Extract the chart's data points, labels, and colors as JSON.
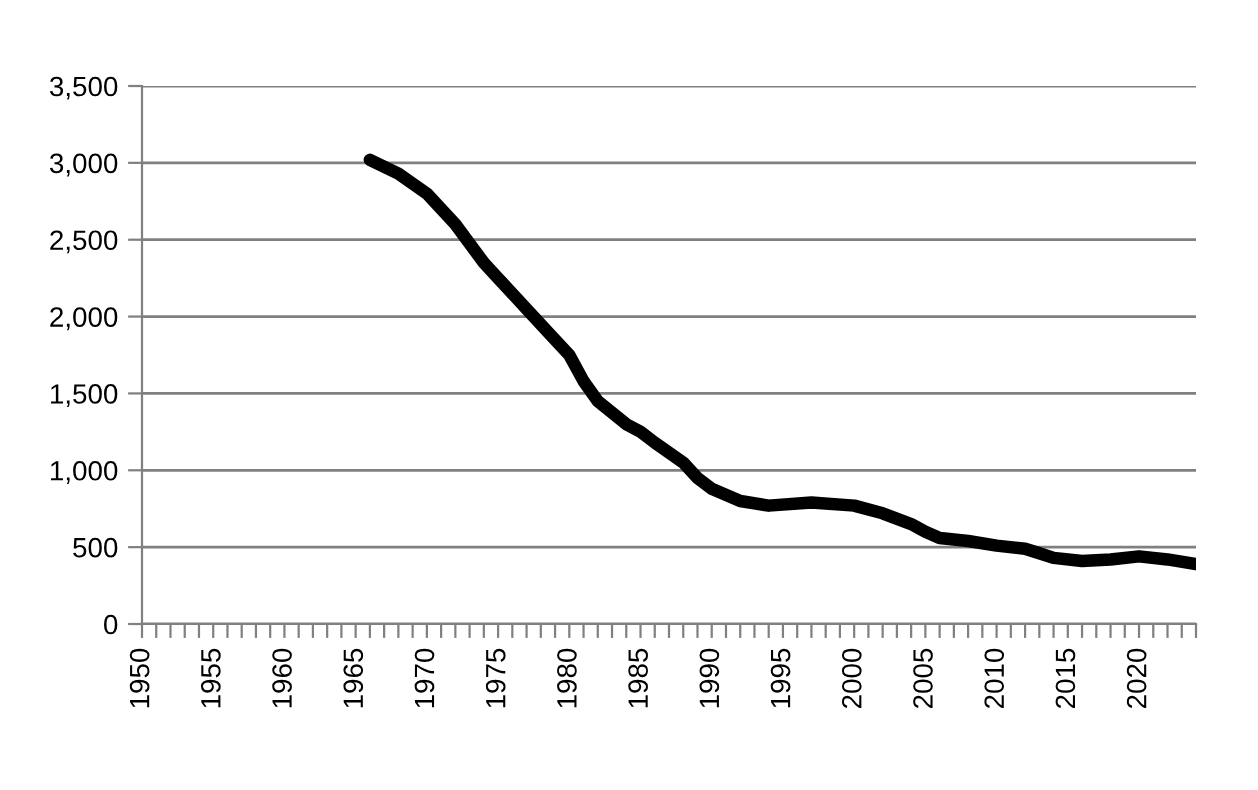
{
  "chart_data": {
    "type": "line",
    "x": [
      1966,
      1968,
      1970,
      1972,
      1974,
      1975,
      1977,
      1979,
      1980,
      1981,
      1982,
      1984,
      1985,
      1986,
      1988,
      1989,
      1990,
      1992,
      1994,
      1997,
      2000,
      2002,
      2004,
      2005,
      2006,
      2008,
      2010,
      2012,
      2013,
      2014,
      2016,
      2018,
      2020,
      2022,
      2024
    ],
    "series": [
      {
        "color": "#000000",
        "values": [
          3020,
          2930,
          2800,
          2600,
          2350,
          2250,
          2050,
          1850,
          1750,
          1580,
          1450,
          1300,
          1250,
          1180,
          1050,
          950,
          880,
          800,
          770,
          790,
          770,
          720,
          650,
          600,
          560,
          540,
          510,
          490,
          460,
          430,
          410,
          420,
          440,
          420,
          390
        ]
      }
    ],
    "xlim": [
      1950,
      2024
    ],
    "xticks": [
      1950,
      {
        "value": 1951,
        "label": null
      },
      {
        "value": 1952,
        "label": null
      },
      {
        "value": 1953,
        "label": null
      },
      {
        "value": 1954,
        "label": null
      },
      1955,
      {
        "value": 1956,
        "label": null
      },
      {
        "value": 1957,
        "label": null
      },
      {
        "value": 1958,
        "label": null
      },
      {
        "value": 1959,
        "label": null
      },
      1960,
      {
        "value": 1961,
        "label": null
      },
      {
        "value": 1962,
        "label": null
      },
      {
        "value": 1963,
        "label": null
      },
      {
        "value": 1964,
        "label": null
      },
      1965,
      {
        "value": 1966,
        "label": null
      },
      {
        "value": 1967,
        "label": null
      },
      {
        "value": 1968,
        "label": null
      },
      {
        "value": 1969,
        "label": null
      },
      1970,
      {
        "value": 1971,
        "label": null
      },
      {
        "value": 1972,
        "label": null
      },
      {
        "value": 1973,
        "label": null
      },
      {
        "value": 1974,
        "label": null
      },
      1975,
      {
        "value": 1976,
        "label": null
      },
      {
        "value": 1977,
        "label": null
      },
      {
        "value": 1978,
        "label": null
      },
      {
        "value": 1979,
        "label": null
      },
      1980,
      {
        "value": 1981,
        "label": null
      },
      {
        "value": 1982,
        "label": null
      },
      {
        "value": 1983,
        "label": null
      },
      {
        "value": 1984,
        "label": null
      },
      1985,
      {
        "value": 1986,
        "label": null
      },
      {
        "value": 1987,
        "label": null
      },
      {
        "value": 1988,
        "label": null
      },
      {
        "value": 1989,
        "label": null
      },
      1990,
      {
        "value": 1991,
        "label": null
      },
      {
        "value": 1992,
        "label": null
      },
      {
        "value": 1993,
        "label": null
      },
      {
        "value": 1994,
        "label": null
      },
      1995,
      {
        "value": 1996,
        "label": null
      },
      {
        "value": 1997,
        "label": null
      },
      {
        "value": 1998,
        "label": null
      },
      {
        "value": 1999,
        "label": null
      },
      2000,
      {
        "value": 2001,
        "label": null
      },
      {
        "value": 2002,
        "label": null
      },
      {
        "value": 2003,
        "label": null
      },
      {
        "value": 2004,
        "label": null
      },
      2005,
      {
        "value": 2006,
        "label": null
      },
      {
        "value": 2007,
        "label": null
      },
      {
        "value": 2008,
        "label": null
      },
      {
        "value": 2009,
        "label": null
      },
      2010,
      {
        "value": 2011,
        "label": null
      },
      {
        "value": 2012,
        "label": null
      },
      {
        "value": 2013,
        "label": null
      },
      {
        "value": 2014,
        "label": null
      },
      2015,
      {
        "value": 2016,
        "label": null
      },
      {
        "value": 2017,
        "label": null
      },
      {
        "value": 2018,
        "label": null
      },
      {
        "value": 2019,
        "label": null
      },
      2020,
      {
        "value": 2021,
        "label": null
      },
      {
        "value": 2022,
        "label": null
      },
      {
        "value": 2023,
        "label": null
      },
      {
        "value": 2024,
        "label": null
      }
    ],
    "ylim": [
      0,
      3500
    ],
    "yticks": [
      0,
      500,
      {
        "value": 1000,
        "label": "1,000"
      },
      {
        "value": 1500,
        "label": "1,500"
      },
      {
        "value": 2000,
        "label": "2,000"
      },
      {
        "value": 2500,
        "label": "2,500"
      },
      {
        "value": 3000,
        "label": "3,000"
      },
      {
        "value": 3500,
        "label": "3,500"
      }
    ],
    "grid": "y",
    "marker": "none",
    "line_style": "solid"
  }
}
